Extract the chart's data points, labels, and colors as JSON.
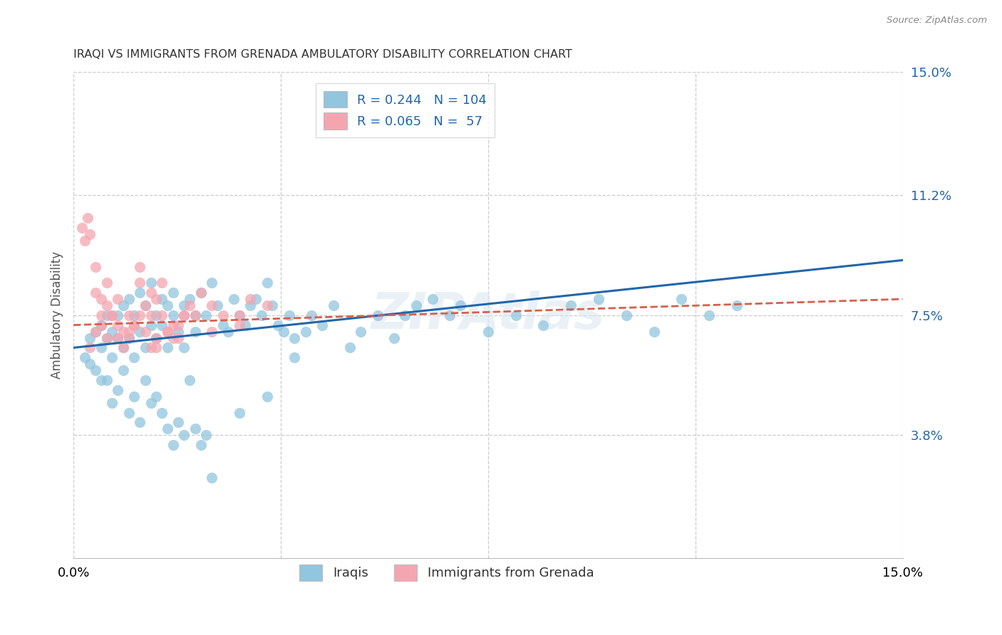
{
  "title": "IRAQI VS IMMIGRANTS FROM GRENADA AMBULATORY DISABILITY CORRELATION CHART",
  "source": "Source: ZipAtlas.com",
  "ylabel_label": "Ambulatory Disability",
  "right_yticks": [
    3.8,
    7.5,
    11.2,
    15.0
  ],
  "right_ytick_labels": [
    "3.8%",
    "7.5%",
    "11.2%",
    "15.0%"
  ],
  "xmin": 0.0,
  "xmax": 15.0,
  "ymin": 0.0,
  "ymax": 15.0,
  "iraqi_R": 0.244,
  "iraqi_N": 104,
  "grenada_R": 0.065,
  "grenada_N": 57,
  "iraqi_color": "#92c5de",
  "grenada_color": "#f4a6b0",
  "iraqi_line_color": "#2166ac",
  "grenada_line_color": "#d6604d",
  "watermark": "ZIPAtlas",
  "legend_label_iraqi": "Iraqis",
  "legend_label_grenada": "Immigrants from Grenada",
  "iraqi_trend_x0": 0.0,
  "iraqi_trend_y0": 6.5,
  "iraqi_trend_x1": 15.0,
  "iraqi_trend_y1": 9.2,
  "grenada_trend_x0": 0.0,
  "grenada_trend_y0": 7.2,
  "grenada_trend_x1": 15.0,
  "grenada_trend_y1": 8.0,
  "iraqi_x": [
    0.2,
    0.3,
    0.3,
    0.4,
    0.4,
    0.5,
    0.5,
    0.5,
    0.6,
    0.6,
    0.7,
    0.7,
    0.8,
    0.8,
    0.9,
    0.9,
    1.0,
    1.0,
    1.1,
    1.1,
    1.2,
    1.2,
    1.3,
    1.3,
    1.4,
    1.4,
    1.5,
    1.5,
    1.6,
    1.6,
    1.7,
    1.7,
    1.8,
    1.8,
    1.9,
    2.0,
    2.0,
    2.1,
    2.2,
    2.2,
    2.3,
    2.4,
    2.5,
    2.6,
    2.7,
    2.8,
    2.9,
    3.0,
    3.1,
    3.2,
    3.3,
    3.4,
    3.5,
    3.6,
    3.7,
    3.8,
    3.9,
    4.0,
    4.2,
    4.3,
    4.5,
    4.7,
    5.0,
    5.2,
    5.5,
    5.8,
    6.0,
    6.2,
    6.5,
    6.8,
    7.0,
    7.5,
    8.0,
    8.5,
    9.0,
    9.5,
    10.0,
    10.5,
    11.0,
    11.5,
    12.0,
    0.6,
    0.7,
    0.8,
    0.9,
    1.0,
    1.1,
    1.2,
    1.3,
    1.4,
    1.5,
    1.6,
    1.7,
    1.8,
    1.9,
    2.0,
    2.1,
    2.2,
    2.3,
    2.4,
    2.5,
    3.0,
    3.5,
    4.0
  ],
  "iraqi_y": [
    6.2,
    6.0,
    6.8,
    7.0,
    5.8,
    6.5,
    7.2,
    5.5,
    6.8,
    7.5,
    7.0,
    6.2,
    7.5,
    6.8,
    7.8,
    6.5,
    8.0,
    6.8,
    7.5,
    6.2,
    8.2,
    7.0,
    7.8,
    6.5,
    8.5,
    7.2,
    7.5,
    6.8,
    8.0,
    7.2,
    7.8,
    6.5,
    7.5,
    8.2,
    7.0,
    7.8,
    6.5,
    8.0,
    7.5,
    7.0,
    8.2,
    7.5,
    8.5,
    7.8,
    7.2,
    7.0,
    8.0,
    7.5,
    7.2,
    7.8,
    8.0,
    7.5,
    8.5,
    7.8,
    7.2,
    7.0,
    7.5,
    6.8,
    7.0,
    7.5,
    7.2,
    7.8,
    6.5,
    7.0,
    7.5,
    6.8,
    7.5,
    7.8,
    8.0,
    7.5,
    7.8,
    7.0,
    7.5,
    7.2,
    7.8,
    8.0,
    7.5,
    7.0,
    8.0,
    7.5,
    7.8,
    5.5,
    4.8,
    5.2,
    5.8,
    4.5,
    5.0,
    4.2,
    5.5,
    4.8,
    5.0,
    4.5,
    4.0,
    3.5,
    4.2,
    3.8,
    5.5,
    4.0,
    3.5,
    3.8,
    2.5,
    4.5,
    5.0,
    6.2
  ],
  "grenada_x": [
    0.15,
    0.2,
    0.25,
    0.3,
    0.4,
    0.4,
    0.5,
    0.5,
    0.6,
    0.6,
    0.7,
    0.8,
    0.8,
    0.9,
    1.0,
    1.0,
    1.1,
    1.2,
    1.2,
    1.3,
    1.4,
    1.4,
    1.5,
    1.5,
    1.6,
    1.7,
    1.8,
    1.9,
    2.0,
    2.1,
    2.2,
    2.3,
    2.5,
    2.7,
    3.0,
    3.2,
    3.5,
    0.3,
    0.4,
    0.5,
    0.6,
    0.7,
    0.8,
    0.9,
    1.0,
    1.1,
    1.2,
    1.3,
    1.4,
    1.5,
    1.6,
    1.7,
    1.8,
    1.9,
    2.0,
    2.5,
    3.0
  ],
  "grenada_y": [
    10.2,
    9.8,
    10.5,
    10.0,
    8.2,
    9.0,
    8.0,
    7.5,
    7.8,
    8.5,
    7.5,
    7.2,
    8.0,
    7.0,
    7.5,
    6.8,
    7.2,
    9.0,
    8.5,
    7.8,
    8.2,
    7.5,
    6.5,
    8.0,
    8.5,
    7.0,
    7.2,
    6.8,
    7.5,
    7.8,
    7.5,
    8.2,
    7.8,
    7.5,
    7.5,
    8.0,
    7.8,
    6.5,
    7.0,
    7.2,
    6.8,
    7.5,
    6.8,
    6.5,
    7.0,
    7.2,
    7.5,
    7.0,
    6.5,
    6.8,
    7.5,
    7.0,
    6.8,
    7.2,
    7.5,
    7.0,
    7.2
  ]
}
